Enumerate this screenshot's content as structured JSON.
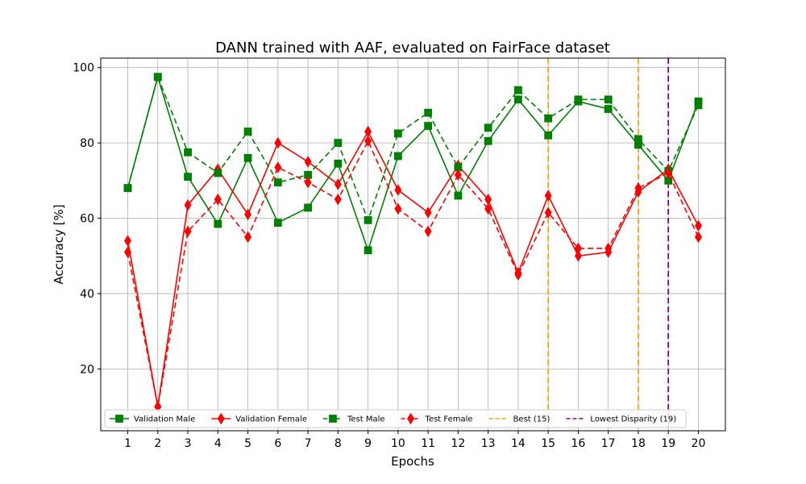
{
  "chart_data": {
    "type": "line",
    "title": "DANN trained with AAF, evaluated on FairFace dataset",
    "xlabel": "Epochs",
    "ylabel": "Accuracy [%]",
    "x": [
      1,
      2,
      3,
      4,
      5,
      6,
      7,
      8,
      9,
      10,
      11,
      12,
      13,
      14,
      15,
      16,
      17,
      18,
      19,
      20
    ],
    "xlim": [
      0.1,
      20.9
    ],
    "ylim": [
      3.6,
      102.5
    ],
    "yticks": [
      20,
      40,
      60,
      80,
      100
    ],
    "grid": true,
    "legend_position": "lower-center",
    "series": [
      {
        "name": "Validation Male",
        "color": "#008000",
        "linestyle": "solid",
        "marker": "square",
        "values": [
          68,
          97.5,
          71,
          58.5,
          76,
          58.8,
          62.8,
          74.5,
          51.5,
          76.5,
          84.5,
          66,
          80.5,
          91.5,
          82,
          91,
          89,
          79.5,
          70,
          91
        ]
      },
      {
        "name": "Validation Female",
        "color": "#ff0000",
        "linestyle": "solid",
        "marker": "diamond",
        "values": [
          54,
          10,
          63.5,
          73,
          61,
          80,
          75,
          69,
          83,
          67.5,
          61.5,
          74,
          65,
          45.5,
          66,
          50,
          51,
          67,
          73,
          58
        ]
      },
      {
        "name": "Test Male",
        "color": "#008000",
        "linestyle": "dashed",
        "marker": "square",
        "values": [
          68,
          97.5,
          77.5,
          72,
          83,
          69.5,
          71.5,
          80,
          59.5,
          82.5,
          88,
          73.5,
          84,
          94,
          86.5,
          91.5,
          91.5,
          81,
          72.5,
          90
        ]
      },
      {
        "name": "Test Female",
        "color": "#ff0000",
        "linestyle": "dashed",
        "marker": "diamond",
        "values": [
          51,
          10,
          56.5,
          65,
          55,
          73.5,
          69.5,
          65,
          80.5,
          62.5,
          56.5,
          71.5,
          62.5,
          45,
          61.5,
          52,
          52,
          68,
          72,
          55
        ]
      }
    ],
    "vlines": [
      {
        "name": "Best (15)",
        "x": 15,
        "color": "#ffa500",
        "linestyle": "dashed",
        "in_legend": true
      },
      {
        "name": "",
        "x": 18,
        "color": "#ffa500",
        "linestyle": "dashed",
        "in_legend": false
      },
      {
        "name": "Lowest Disparity (19)",
        "x": 19,
        "color": "#800080",
        "linestyle": "dashed",
        "in_legend": true
      }
    ]
  }
}
